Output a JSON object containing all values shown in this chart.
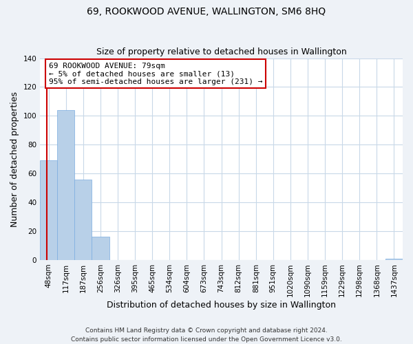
{
  "title": "69, ROOKWOOD AVENUE, WALLINGTON, SM6 8HQ",
  "subtitle": "Size of property relative to detached houses in Wallington",
  "xlabel": "Distribution of detached houses by size in Wallington",
  "ylabel": "Number of detached properties",
  "categories": [
    "48sqm",
    "117sqm",
    "187sqm",
    "256sqm",
    "326sqm",
    "395sqm",
    "465sqm",
    "534sqm",
    "604sqm",
    "673sqm",
    "743sqm",
    "812sqm",
    "881sqm",
    "951sqm",
    "1020sqm",
    "1090sqm",
    "1159sqm",
    "1229sqm",
    "1298sqm",
    "1368sqm",
    "1437sqm"
  ],
  "values": [
    69,
    104,
    56,
    16,
    0,
    0,
    0,
    0,
    0,
    0,
    0,
    0,
    0,
    0,
    0,
    0,
    0,
    0,
    0,
    0,
    1
  ],
  "bar_color": "#b8d0e8",
  "bar_edge_color": "#7aace0",
  "vline_color": "#cc0000",
  "vline_x": -0.1,
  "annotation_title": "69 ROOKWOOD AVENUE: 79sqm",
  "annotation_line1": "← 5% of detached houses are smaller (13)",
  "annotation_line2": "95% of semi-detached houses are larger (231) →",
  "annotation_box_color": "#ffffff",
  "annotation_box_edgecolor": "#cc0000",
  "ylim": [
    0,
    140
  ],
  "yticks": [
    0,
    20,
    40,
    60,
    80,
    100,
    120,
    140
  ],
  "footer1": "Contains HM Land Registry data © Crown copyright and database right 2024.",
  "footer2": "Contains public sector information licensed under the Open Government Licence v3.0.",
  "bg_color": "#eef2f7",
  "plot_bg_color": "#ffffff",
  "grid_color": "#c8d8e8",
  "title_fontsize": 10,
  "subtitle_fontsize": 9,
  "xlabel_fontsize": 9,
  "ylabel_fontsize": 9,
  "tick_fontsize": 7.5,
  "annotation_fontsize": 8
}
